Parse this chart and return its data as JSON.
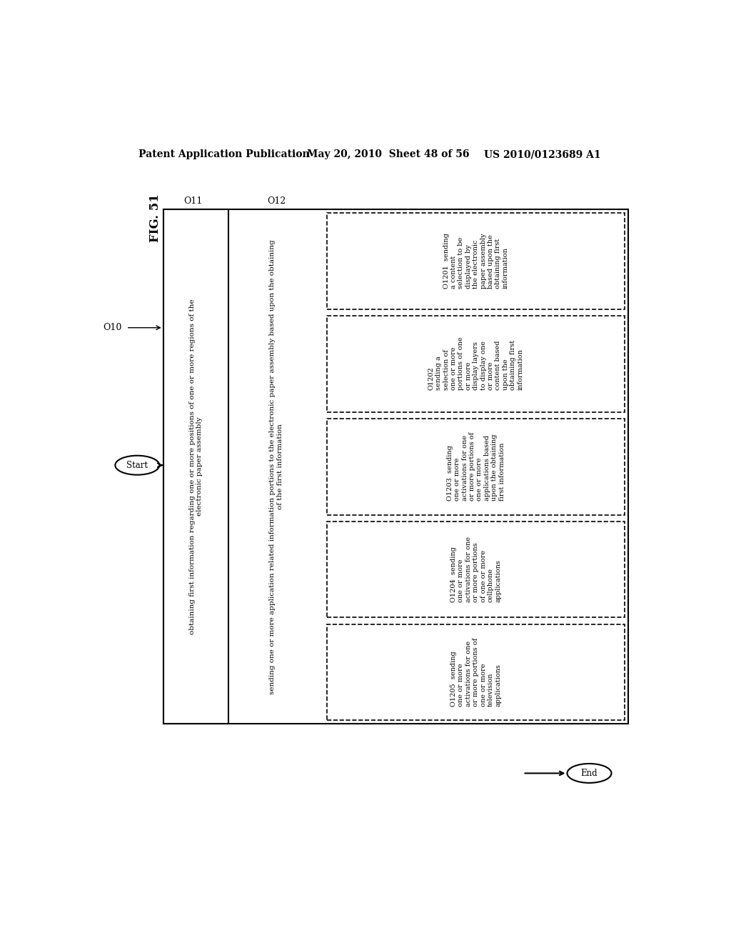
{
  "header_left": "Patent Application Publication",
  "header_mid": "May 20, 2010  Sheet 48 of 56",
  "header_right": "US 2010/0123689 A1",
  "fig_label": "FIG. 51",
  "bg_color": "#ffffff",
  "O10_label": "O10",
  "O11_label": "O11",
  "O12_label": "O12",
  "box_O11_text": "obtaining first information regarding one or more positions of one or more regions of the\nelectronic paper assembly",
  "box_O12_text": "sending one or more application related information portions to the electronic paper assembly based upon the obtaining\nof the first information",
  "start_label": "Start",
  "end_label": "End",
  "sub_boxes": [
    {
      "id": "O1201",
      "lines": [
        "O1201  sending",
        "a content",
        "selection to be",
        "displayed by",
        "the electronic",
        "paper assembly",
        "based upon the",
        "obtaining first",
        "information"
      ]
    },
    {
      "id": "O1202",
      "lines": [
        "O1202",
        "sending a",
        "selection of",
        "one or more",
        "portions of one",
        "or more",
        "display layers",
        "to display one",
        "or more",
        "content based",
        "upon the",
        "obtaining first",
        "information"
      ]
    },
    {
      "id": "O1203",
      "lines": [
        "O1203  sending",
        "one or more",
        "activations for one",
        "or more portions of",
        "one or more",
        "applications based",
        "upon the obtaining",
        "first information"
      ]
    },
    {
      "id": "O1204",
      "lines": [
        "O1204  sending",
        "one or more",
        "activations for one",
        "or more portions",
        "of one or more",
        "cellphone",
        "applications"
      ]
    },
    {
      "id": "O1205",
      "lines": [
        "O1205  sending",
        "one or more",
        "activations for one",
        "or more portions of",
        "one or more",
        "television",
        "applications"
      ]
    }
  ]
}
